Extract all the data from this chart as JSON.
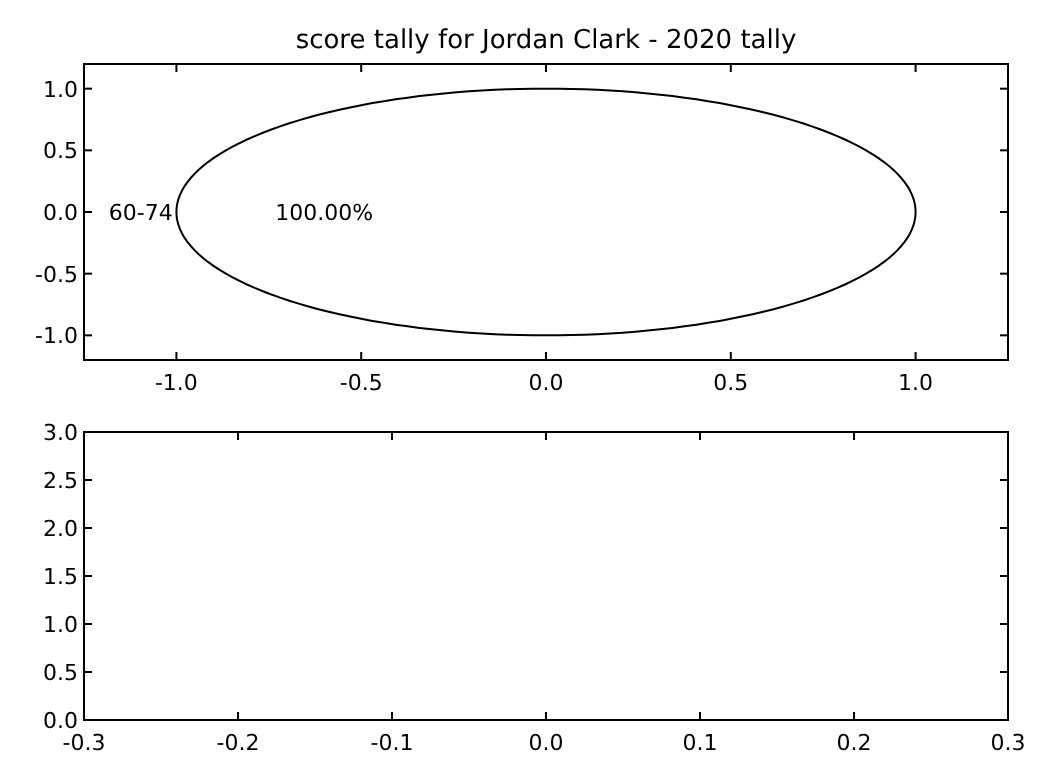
{
  "chart_data": [
    {
      "type": "pie",
      "title": "score tally for Jordan Clark - 2020 tally",
      "categories": [
        "60-74"
      ],
      "values": [
        100
      ],
      "colors": [
        "#ffffff"
      ],
      "value_labels": [
        "100.00%"
      ]
    },
    {
      "type": "scatter",
      "xlim": [
        -1.25,
        1.25
      ],
      "ylim": [
        -1.2,
        1.2
      ],
      "xticks": [
        {
          "value": -1,
          "label": "-1.0"
        },
        {
          "value": -0.5,
          "label": "-0.5"
        },
        {
          "value": 0,
          "label": "0.0"
        },
        {
          "value": 0.5,
          "label": "0.5"
        },
        {
          "value": 1,
          "label": "1.0"
        }
      ],
      "yticks": [
        {
          "value": -1,
          "label": "-1.0"
        },
        {
          "value": -0.5,
          "label": "-0.5"
        },
        {
          "value": 0,
          "label": "0.0"
        },
        {
          "value": 0.5,
          "label": "0.5"
        },
        {
          "value": 1,
          "label": "1.0"
        }
      ]
    },
    {
      "type": "scatter",
      "xlim": [
        -0.3,
        0.3
      ],
      "ylim": [
        0,
        3
      ],
      "xticks": [
        {
          "value": -0.3,
          "label": "-0.3"
        },
        {
          "value": -0.2,
          "label": "-0.2"
        },
        {
          "value": -0.1,
          "label": "-0.1"
        },
        {
          "value": 0,
          "label": "0.0"
        },
        {
          "value": 0.1,
          "label": "0.1"
        },
        {
          "value": 0.2,
          "label": "0.2"
        },
        {
          "value": 0.3,
          "label": "0.3"
        }
      ],
      "yticks": [
        {
          "value": 0,
          "label": "0.0"
        },
        {
          "value": 0.5,
          "label": "0.5"
        },
        {
          "value": 1,
          "label": "1.0"
        },
        {
          "value": 1.5,
          "label": "1.5"
        },
        {
          "value": 2,
          "label": "2.0"
        },
        {
          "value": 2.5,
          "label": "2.5"
        },
        {
          "value": 3,
          "label": "3.0"
        }
      ]
    }
  ]
}
